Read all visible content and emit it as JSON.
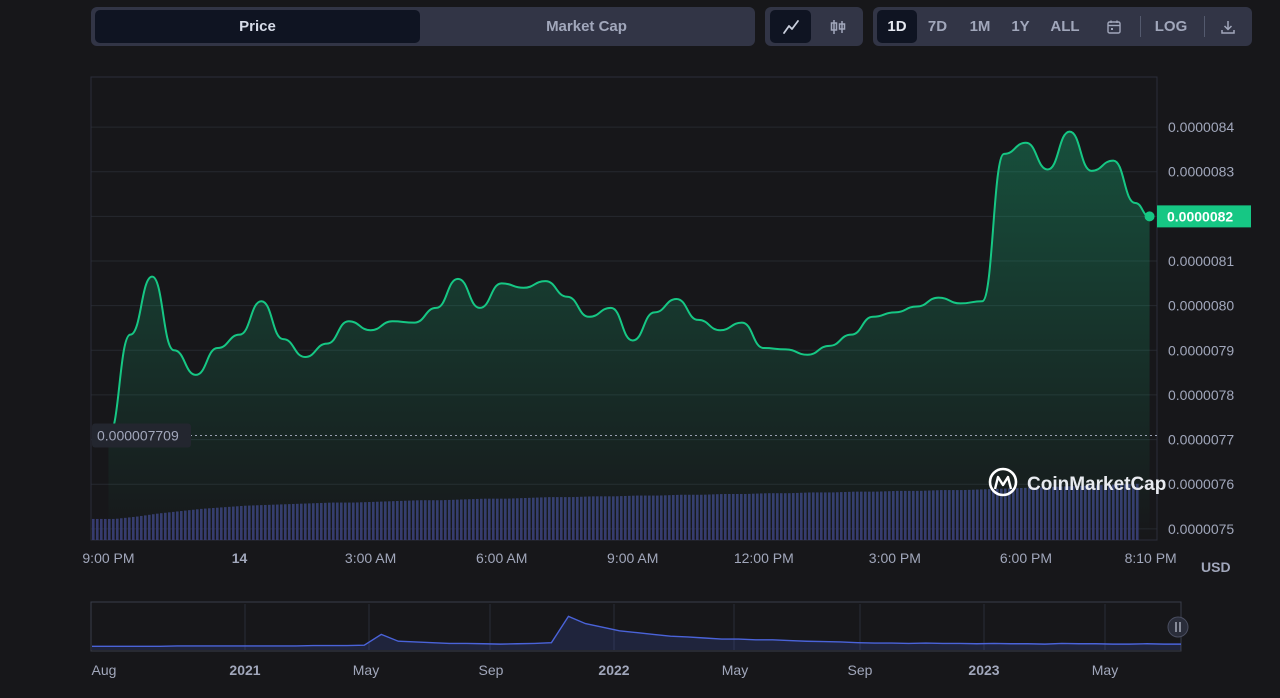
{
  "metric_toggle": {
    "price_label": "Price",
    "market_cap_label": "Market Cap",
    "active": "price"
  },
  "chart_type": {
    "line_icon": "line-chart-icon",
    "candle_icon": "candlestick-icon",
    "active": "line"
  },
  "range": {
    "buttons": [
      "1D",
      "7D",
      "1M",
      "1Y",
      "ALL"
    ],
    "active": "1D",
    "calendar_icon": "calendar-icon",
    "log_label": "LOG",
    "download_icon": "download-icon"
  },
  "watermark": "CoinMarketCap",
  "currency_label": "USD",
  "colors": {
    "line": "#16c784",
    "volume": "#3a3f78",
    "nav_line": "#4a63d9",
    "price_tag": "#16c784"
  },
  "chart_data": {
    "type": "line",
    "title": "Price",
    "x": [
      0,
      0.5,
      1,
      1.5,
      2,
      2.5,
      3,
      3.5,
      4,
      4.5,
      5,
      5.5,
      6,
      6.5,
      7,
      7.5,
      8,
      8.5,
      9,
      9.5,
      10,
      10.5,
      11,
      11.5,
      12,
      12.5,
      13,
      13.5,
      14,
      14.5,
      15,
      15.5,
      16,
      16.5,
      17,
      17.5,
      18,
      18.5,
      19,
      19.5,
      20,
      20.5,
      21,
      21.5,
      22,
      22.5,
      23,
      23.5,
      23.83
    ],
    "values": [
      7.709,
      7.935,
      8.065,
      7.9,
      7.845,
      7.905,
      7.935,
      8.01,
      7.925,
      7.885,
      7.915,
      7.965,
      7.945,
      7.965,
      7.962,
      7.995,
      8.06,
      7.995,
      8.05,
      8.04,
      8.055,
      8.02,
      7.975,
      7.995,
      7.922,
      7.985,
      8.015,
      7.968,
      7.945,
      7.962,
      7.905,
      7.902,
      7.89,
      7.91,
      7.935,
      7.975,
      7.985,
      7.998,
      8.018,
      8.005,
      8.01,
      8.34,
      8.365,
      8.305,
      8.39,
      8.302,
      8.325,
      8.23,
      8.2
    ],
    "x_ticks": [
      {
        "h": 0,
        "label": "9:00 PM"
      },
      {
        "h": 3,
        "label": "14"
      },
      {
        "h": 6,
        "label": "3:00 AM"
      },
      {
        "h": 9,
        "label": "6:00 AM"
      },
      {
        "h": 12,
        "label": "9:00 AM"
      },
      {
        "h": 15,
        "label": "12:00 PM"
      },
      {
        "h": 18,
        "label": "3:00 PM"
      },
      {
        "h": 21,
        "label": "6:00 PM"
      },
      {
        "h": 23.83,
        "label": "8:10 PM"
      }
    ],
    "y_ticks": [
      {
        "v": 8.4,
        "label": "0.0000084"
      },
      {
        "v": 8.3,
        "label": "0.0000083"
      },
      {
        "v": 8.1,
        "label": "0.0000081"
      },
      {
        "v": 8.0,
        "label": "0.0000080"
      },
      {
        "v": 7.9,
        "label": "0.0000079"
      },
      {
        "v": 7.8,
        "label": "0.0000078"
      },
      {
        "v": 7.7,
        "label": "0.0000077"
      },
      {
        "v": 7.6,
        "label": "0.0000076"
      },
      {
        "v": 7.5,
        "label": "0.0000075"
      }
    ],
    "value_unit_note": "values in units of 1e-6 USD",
    "ylim": [
      7.475,
      8.51
    ],
    "xlim": [
      -0.4,
      24.0
    ],
    "current_price_label": "0.0000082",
    "current_value": 8.2,
    "open_price_label": "0.000007709",
    "open_value": 7.709,
    "ylabel": "USD",
    "volume": [
      0.27,
      0.27,
      0.3,
      0.34,
      0.37,
      0.4,
      0.42,
      0.44,
      0.45,
      0.46,
      0.47,
      0.48,
      0.48,
      0.49,
      0.5,
      0.51,
      0.51,
      0.52,
      0.53,
      0.53,
      0.54,
      0.55,
      0.55,
      0.56,
      0.56,
      0.57,
      0.57,
      0.58,
      0.58,
      0.59,
      0.59,
      0.6,
      0.6,
      0.61,
      0.61,
      0.62,
      0.62,
      0.63,
      0.63,
      0.64,
      0.64,
      0.65,
      0.66,
      0.67,
      0.68,
      0.69,
      0.7,
      0.71,
      0.72
    ]
  },
  "navigator": {
    "labels": [
      "Aug",
      "2021",
      "May",
      "Sep",
      "2022",
      "May",
      "Sep",
      "2023",
      "May"
    ],
    "bold_labels": [
      "2021",
      "2022",
      "2023"
    ],
    "series": [
      0.02,
      0.02,
      0.02,
      0.02,
      0.02,
      0.03,
      0.03,
      0.03,
      0.03,
      0.03,
      0.03,
      0.03,
      0.03,
      0.04,
      0.04,
      0.04,
      0.05,
      0.35,
      0.16,
      0.14,
      0.12,
      0.1,
      0.1,
      0.09,
      0.08,
      0.09,
      0.1,
      0.12,
      0.85,
      0.65,
      0.55,
      0.45,
      0.4,
      0.35,
      0.3,
      0.28,
      0.25,
      0.22,
      0.22,
      0.2,
      0.2,
      0.18,
      0.16,
      0.15,
      0.14,
      0.12,
      0.11,
      0.11,
      0.1,
      0.11,
      0.1,
      0.1,
      0.09,
      0.1,
      0.09,
      0.09,
      0.08,
      0.1,
      0.09,
      0.09,
      0.08,
      0.08,
      0.09,
      0.08,
      0.08
    ]
  }
}
